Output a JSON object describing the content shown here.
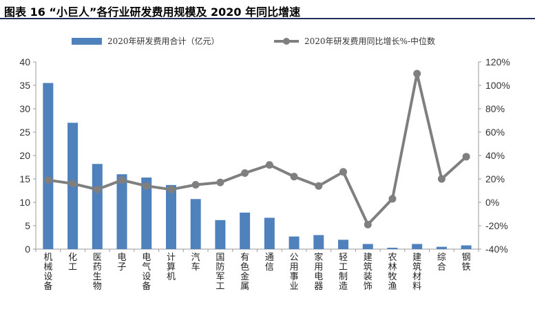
{
  "figure": {
    "title": "图表 16 “小巨人”各行业研发费用规模及 2020 年同比增速"
  },
  "chart_data": {
    "type": "bar+line",
    "categories": [
      "机械设备",
      "化工",
      "医药生物",
      "电子",
      "电气设备",
      "计算机",
      "汽车",
      "国防军工",
      "有色金属",
      "通信",
      "公用事业",
      "家用电器",
      "轻工制造",
      "建筑装饰",
      "农林牧渔",
      "建筑材料",
      "综合",
      "钢铁"
    ],
    "series": [
      {
        "name": "2020年研发费用合计（亿元）",
        "type": "bar",
        "axis": "left",
        "color": "#4f81bd",
        "values": [
          35.5,
          27.0,
          18.2,
          16.0,
          15.3,
          13.7,
          10.7,
          6.2,
          7.8,
          6.7,
          2.7,
          3.0,
          2.0,
          1.1,
          0.3,
          1.1,
          0.5,
          0.8
        ]
      },
      {
        "name": "2020年研发费用同比增长%-中位数",
        "type": "line",
        "axis": "right",
        "color": "#7f7f7f",
        "values": [
          19,
          16,
          11,
          19,
          14,
          11,
          15,
          17,
          25,
          32,
          22,
          14,
          26,
          -19,
          3,
          110,
          20,
          39
        ]
      }
    ],
    "ylim_left": [
      0,
      40
    ],
    "yticks_left": [
      "0",
      "5",
      "10",
      "15",
      "20",
      "25",
      "30",
      "35",
      "40"
    ],
    "ylim_right": [
      -40,
      120
    ],
    "yticks_right": [
      "-40%",
      "-20%",
      "0%",
      "20%",
      "40%",
      "60%",
      "80%",
      "100%",
      "120%"
    ],
    "grid": false,
    "legend_position": "top"
  }
}
